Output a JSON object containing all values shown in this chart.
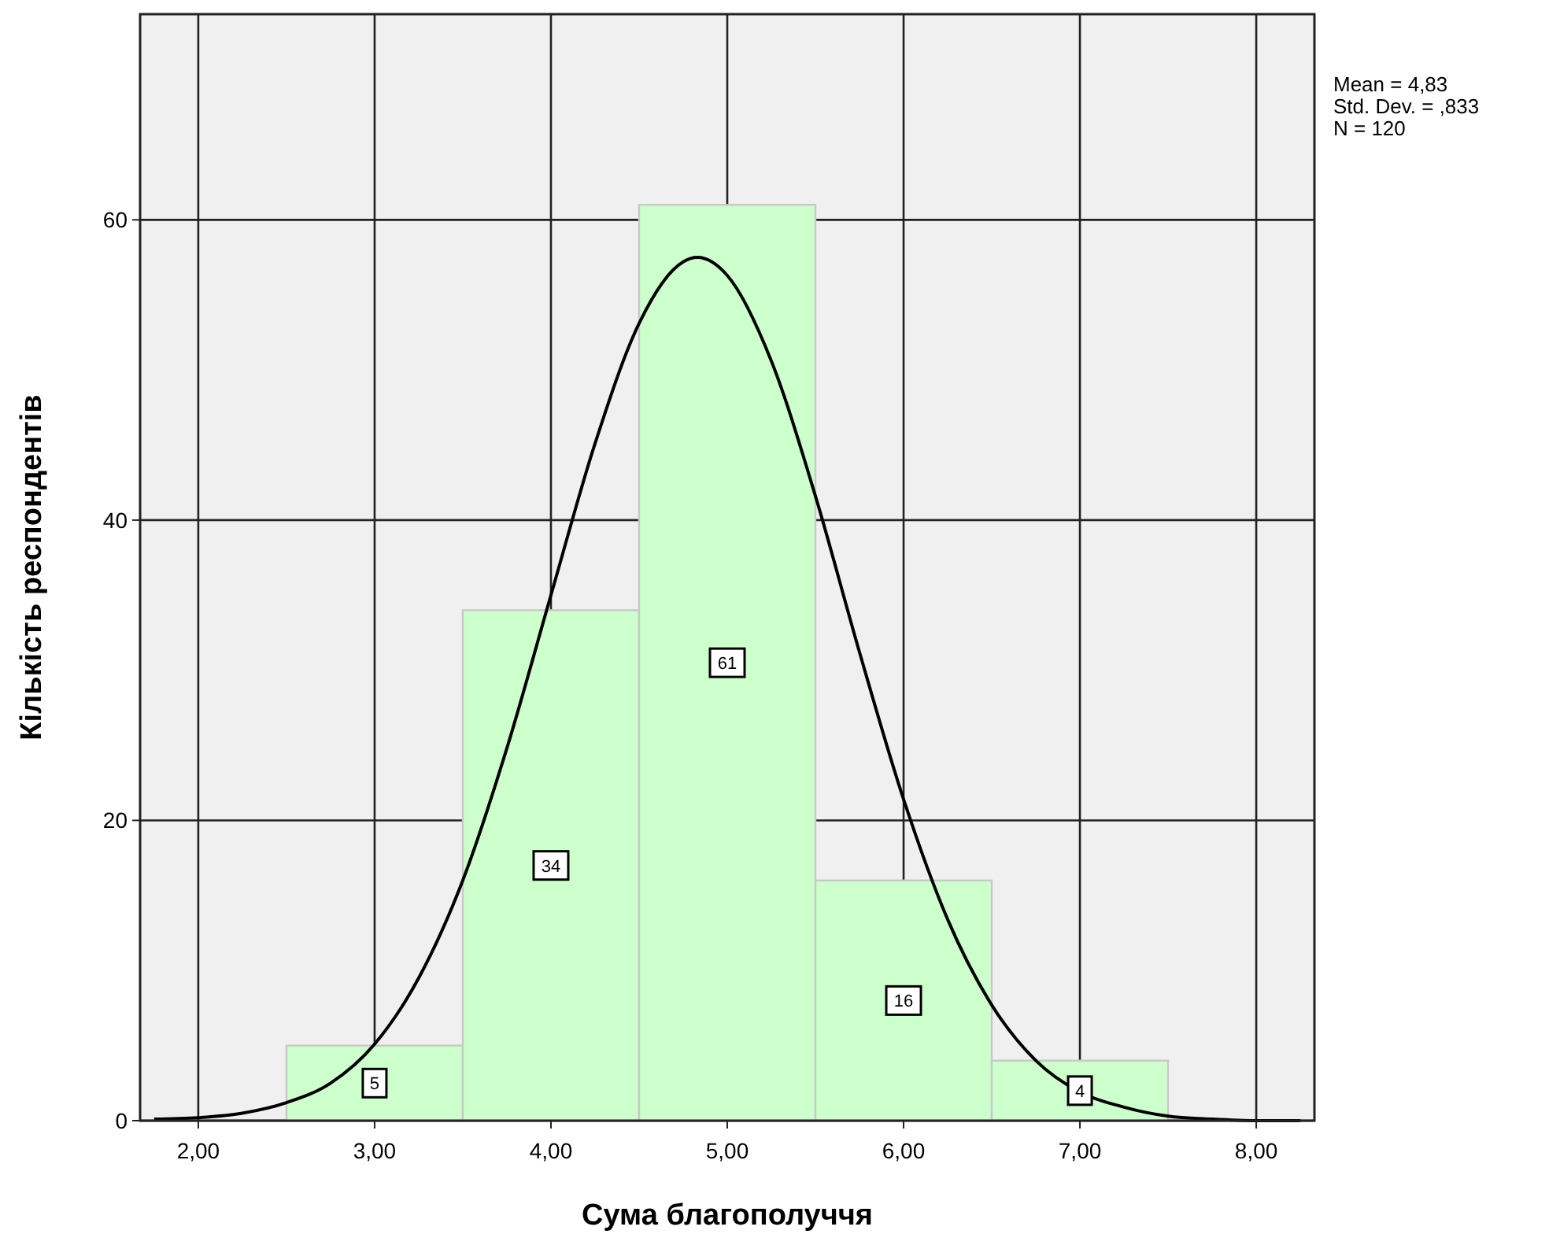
{
  "chart_data": {
    "type": "histogram",
    "xlabel": "Сума благополуччя",
    "ylabel": "Кількість респондентів",
    "annotations": [
      "Mean = 4,83",
      "Std. Dev. = ,833",
      "N = 120"
    ],
    "bins": [
      2.5,
      3.5,
      4.5,
      5.5,
      6.5,
      7.5
    ],
    "values": [
      5,
      34,
      61,
      16,
      4
    ],
    "color": "#ccffcc",
    "value_labels": [
      "5",
      "34",
      "61",
      "16",
      "4"
    ],
    "series": [
      {
        "type": "line",
        "color": "#000000",
        "x": [
          1.75,
          2,
          2.25,
          2.5,
          2.75,
          3,
          3.25,
          3.5,
          3.75,
          4,
          4.25,
          4.5,
          4.75,
          4.83,
          5,
          5.25,
          5.5,
          5.75,
          6,
          6.25,
          6.5,
          6.75,
          7,
          7.25,
          7.5,
          7.75,
          8,
          8.25
        ],
        "values": [
          0.1,
          0.2,
          0.5,
          1.2,
          2.5,
          5.1,
          9.5,
          16,
          24.8,
          35,
          45.1,
          53.1,
          57.2,
          57.5,
          56.3,
          50.6,
          41.6,
          31.2,
          21.4,
          13.4,
          7.7,
          4,
          1.9,
          0.9,
          0.3,
          0.1,
          0,
          0
        ]
      }
    ],
    "xlim": [
      1.67,
      8.33
    ],
    "ylim": [
      0,
      73.7
    ],
    "xticks": [
      {
        "value": 2,
        "label": "2,00"
      },
      {
        "value": 3,
        "label": "3,00"
      },
      {
        "value": 4,
        "label": "4,00"
      },
      {
        "value": 5,
        "label": "5,00"
      },
      {
        "value": 6,
        "label": "6,00"
      },
      {
        "value": 7,
        "label": "7,00"
      },
      {
        "value": 8,
        "label": "8,00"
      }
    ],
    "yticks": [
      0,
      20,
      40,
      60
    ],
    "grid": true,
    "line_style": "solid",
    "marker": "none"
  }
}
